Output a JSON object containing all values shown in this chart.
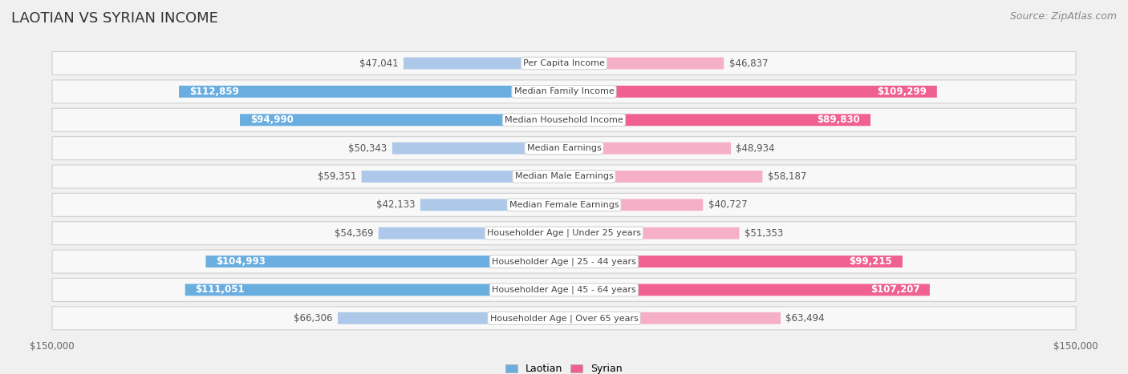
{
  "title": "LAOTIAN VS SYRIAN INCOME",
  "source": "Source: ZipAtlas.com",
  "categories": [
    "Per Capita Income",
    "Median Family Income",
    "Median Household Income",
    "Median Earnings",
    "Median Male Earnings",
    "Median Female Earnings",
    "Householder Age | Under 25 years",
    "Householder Age | 25 - 44 years",
    "Householder Age | 45 - 64 years",
    "Householder Age | Over 65 years"
  ],
  "laotian": [
    47041,
    112859,
    94990,
    50343,
    59351,
    42133,
    54369,
    104993,
    111051,
    66306
  ],
  "syrian": [
    46837,
    109299,
    89830,
    48934,
    58187,
    40727,
    51353,
    99215,
    107207,
    63494
  ],
  "max_val": 150000,
  "laotian_color_light": "#adc8e8",
  "laotian_color_dark": "#6aaee0",
  "syrian_color_light": "#f5b0c8",
  "syrian_color_dark": "#f06090",
  "laotian_label_color_thresh": 70000,
  "syrian_label_color_thresh": 70000,
  "bg_color": "#f0f0f0",
  "row_bg_color": "#ffffff",
  "title_fontsize": 13,
  "source_fontsize": 9,
  "bar_label_fontsize": 8.5,
  "cat_label_fontsize": 8,
  "legend_fontsize": 9,
  "axis_label_fontsize": 8.5
}
